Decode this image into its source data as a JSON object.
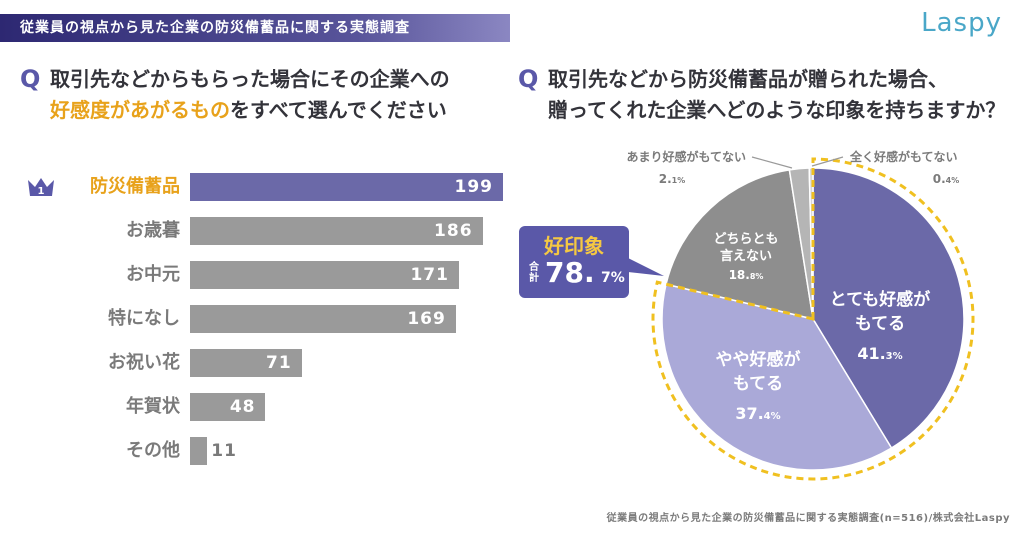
{
  "header": {
    "banner": "従業員の視点から見た企業の防災備蓄品に関する実態調査",
    "logo": "Laspy"
  },
  "left_question": {
    "mark": "Q",
    "line1": "取引先などからもらった場合にその企業への",
    "line2_highlight": "好感度があがるもの",
    "line2_rest": "をすべて選んでください"
  },
  "right_question": {
    "mark": "Q",
    "line1": "取引先などから防災備蓄品が贈られた場合、",
    "line2": "贈ってくれた企業へどのような印象を持ちますか？"
  },
  "rank_badge": "1",
  "callout": {
    "title": "好印象",
    "sub": "合計",
    "number": "78.",
    "decimal": "7%"
  },
  "footer": "従業員の視点から見た企業の防災備蓄品に関する実態調査(n=516)/株式会社Laspy",
  "colors": {
    "accent": "#5a58a8",
    "highlight": "#e8a21b",
    "bar_default": "#9a9a9a",
    "pie_dark": "#6b69a8",
    "pie_light": "#aaa9d8",
    "pie_gray": "#8e8e8e",
    "pie_lightgray": "#b5b5b5",
    "dash": "#f0c020"
  },
  "chart_data": [
    {
      "type": "bar",
      "orientation": "horizontal",
      "categories": [
        "防災備蓄品",
        "お歳暮",
        "お中元",
        "特になし",
        "お祝い花",
        "年賀状",
        "その他"
      ],
      "values": [
        199,
        186,
        171,
        169,
        71,
        48,
        11
      ],
      "xlim": [
        0,
        199
      ]
    },
    {
      "type": "pie",
      "slices": [
        {
          "label_lines": [
            "とても好感が",
            "もてる"
          ],
          "value": 41.3,
          "value_text": "41.",
          "decimal_text": "3%",
          "color": "#6b69a8",
          "text_color": "#ffffff"
        },
        {
          "label_lines": [
            "やや好感が",
            "もてる"
          ],
          "value": 37.4,
          "value_text": "37.",
          "decimal_text": "4%",
          "color": "#aaa9d8",
          "text_color": "#ffffff"
        },
        {
          "label_lines": [
            "どちらとも",
            "言えない"
          ],
          "value": 18.8,
          "value_text": "18.",
          "decimal_text": "8%",
          "color": "#8e8e8e",
          "text_color": "#ffffff"
        },
        {
          "label_lines": [
            "あまり好感がもてない"
          ],
          "value": 2.1,
          "value_text": "2.",
          "decimal_text": "1%",
          "color": "#b5b5b5",
          "text_color": "#7b7b7b"
        },
        {
          "label_lines": [
            "全く好感がもてない"
          ],
          "value": 0.4,
          "value_text": "0.",
          "decimal_text": "4%",
          "color": "#d6d6d6",
          "text_color": "#7b7b7b"
        }
      ]
    }
  ]
}
